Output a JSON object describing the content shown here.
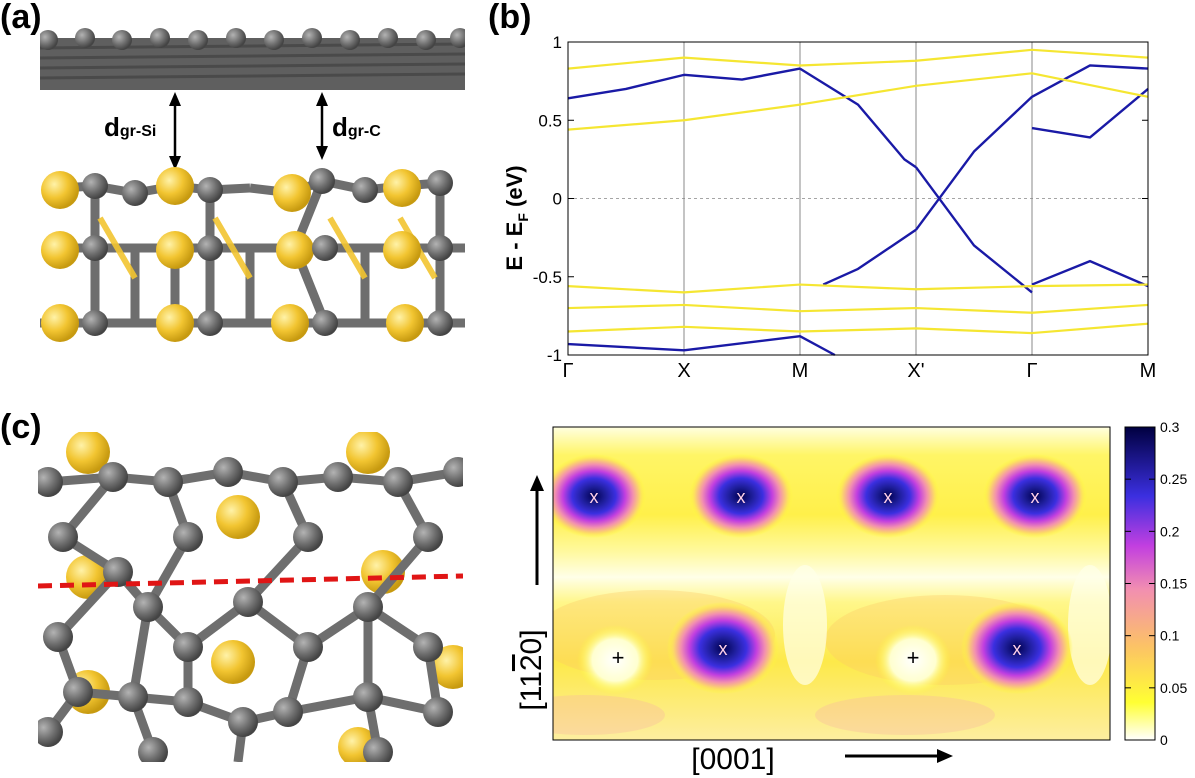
{
  "panel_labels": {
    "a": "(a)",
    "b": "(b)",
    "c": "(c)"
  },
  "panel_a": {
    "d_si_main": "d",
    "d_si_sub": "gr-Si",
    "d_c_main": "d",
    "d_c_sub": "gr-C",
    "colors": {
      "carbon": "#6e6e6e",
      "silicon": "#f2c531"
    }
  },
  "chart_data": [
    {
      "type": "line",
      "panel": "b",
      "ylabel_main": "E - E",
      "ylabel_sub": "F",
      "ylabel_unit": " (eV)",
      "ylim": [
        -1,
        1
      ],
      "yticks": [
        "1",
        "0.5",
        "0",
        "-0.5",
        "-1"
      ],
      "ytick_values": [
        1,
        0.5,
        0,
        -0.5,
        -1
      ],
      "xticks": [
        "Γ",
        "X",
        "M",
        "X'",
        "Γ",
        "M"
      ],
      "xtick_positions": [
        0,
        1,
        2,
        3,
        4,
        5
      ],
      "grid": "vertical lines at high-symmetry points, dashed line at E = 0",
      "series": [
        {
          "color": "#1a1aa6",
          "values": [
            [
              0,
              0.64
            ],
            [
              0.5,
              0.7
            ],
            [
              1,
              0.79
            ],
            [
              1.5,
              0.76
            ],
            [
              2,
              0.83
            ]
          ]
        },
        {
          "color": "#1a1aa6",
          "values": [
            [
              2,
              0.83
            ],
            [
              2.5,
              0.6
            ],
            [
              2.9,
              0.25
            ],
            [
              3,
              0.2
            ]
          ]
        },
        {
          "color": "#1a1aa6",
          "values": [
            [
              3,
              -0.2
            ],
            [
              2.9,
              -0.25
            ],
            [
              2.5,
              -0.45
            ],
            [
              2.2,
              -0.55
            ]
          ]
        },
        {
          "color": "#1a1aa6",
          "values": [
            [
              3,
              0.2
            ],
            [
              3.5,
              -0.3
            ],
            [
              4,
              -0.6
            ]
          ]
        },
        {
          "color": "#1a1aa6",
          "values": [
            [
              3,
              -0.2
            ],
            [
              3.5,
              0.3
            ],
            [
              4,
              0.65
            ],
            [
              4.5,
              0.85
            ],
            [
              5,
              0.83
            ]
          ]
        },
        {
          "color": "#1a1aa6",
          "values": [
            [
              4,
              0.45
            ],
            [
              4.5,
              0.39
            ],
            [
              5,
              0.7
            ]
          ]
        },
        {
          "color": "#1a1aa6",
          "values": [
            [
              4,
              -0.55
            ],
            [
              4.5,
              -0.4
            ],
            [
              5,
              -0.56
            ]
          ]
        },
        {
          "color": "#f5e632",
          "values": [
            [
              0,
              0.44
            ],
            [
              1,
              0.5
            ],
            [
              2,
              0.6
            ],
            [
              3,
              0.72
            ],
            [
              4,
              0.8
            ],
            [
              5,
              0.65
            ]
          ]
        },
        {
          "color": "#f5e632",
          "values": [
            [
              0,
              0.83
            ],
            [
              1,
              0.9
            ],
            [
              2,
              0.85
            ],
            [
              3,
              0.88
            ],
            [
              4,
              0.95
            ],
            [
              5,
              0.9
            ]
          ]
        },
        {
          "color": "#f5e632",
          "values": [
            [
              0,
              -0.56
            ],
            [
              1,
              -0.6
            ],
            [
              2,
              -0.55
            ],
            [
              3,
              -0.58
            ],
            [
              4,
              -0.56
            ],
            [
              5,
              -0.55
            ]
          ]
        },
        {
          "color": "#f5e632",
          "values": [
            [
              0,
              -0.7
            ],
            [
              1,
              -0.68
            ],
            [
              2,
              -0.72
            ],
            [
              3,
              -0.7
            ],
            [
              4,
              -0.73
            ],
            [
              5,
              -0.68
            ]
          ]
        },
        {
          "color": "#f5e632",
          "values": [
            [
              0,
              -0.85
            ],
            [
              1,
              -0.82
            ],
            [
              2,
              -0.85
            ],
            [
              3,
              -0.83
            ],
            [
              4,
              -0.86
            ],
            [
              5,
              -0.8
            ]
          ]
        },
        {
          "color": "#1a1aa6",
          "values": [
            [
              0,
              -0.93
            ],
            [
              1,
              -0.97
            ],
            [
              2,
              -0.88
            ],
            [
              2.3,
              -1
            ]
          ]
        }
      ]
    },
    {
      "type": "heatmap",
      "panel": "c",
      "xlabel": "[0001]",
      "ylabel_parts": [
        "[11",
        "2",
        "0]"
      ],
      "colorbar_ticks": [
        "0.3",
        "0.25",
        "0.2",
        "0.15",
        "0.1",
        "0.05",
        "0"
      ],
      "colorbar_values": [
        0.3,
        0.25,
        0.2,
        0.15,
        0.1,
        0.05,
        0
      ],
      "zlim": [
        0,
        0.3
      ],
      "x_marker": "x",
      "plus_marker": "+",
      "x_markers_top_row_count": 4,
      "x_markers_bottom_row_count": 2,
      "plus_markers_count": 2
    }
  ]
}
